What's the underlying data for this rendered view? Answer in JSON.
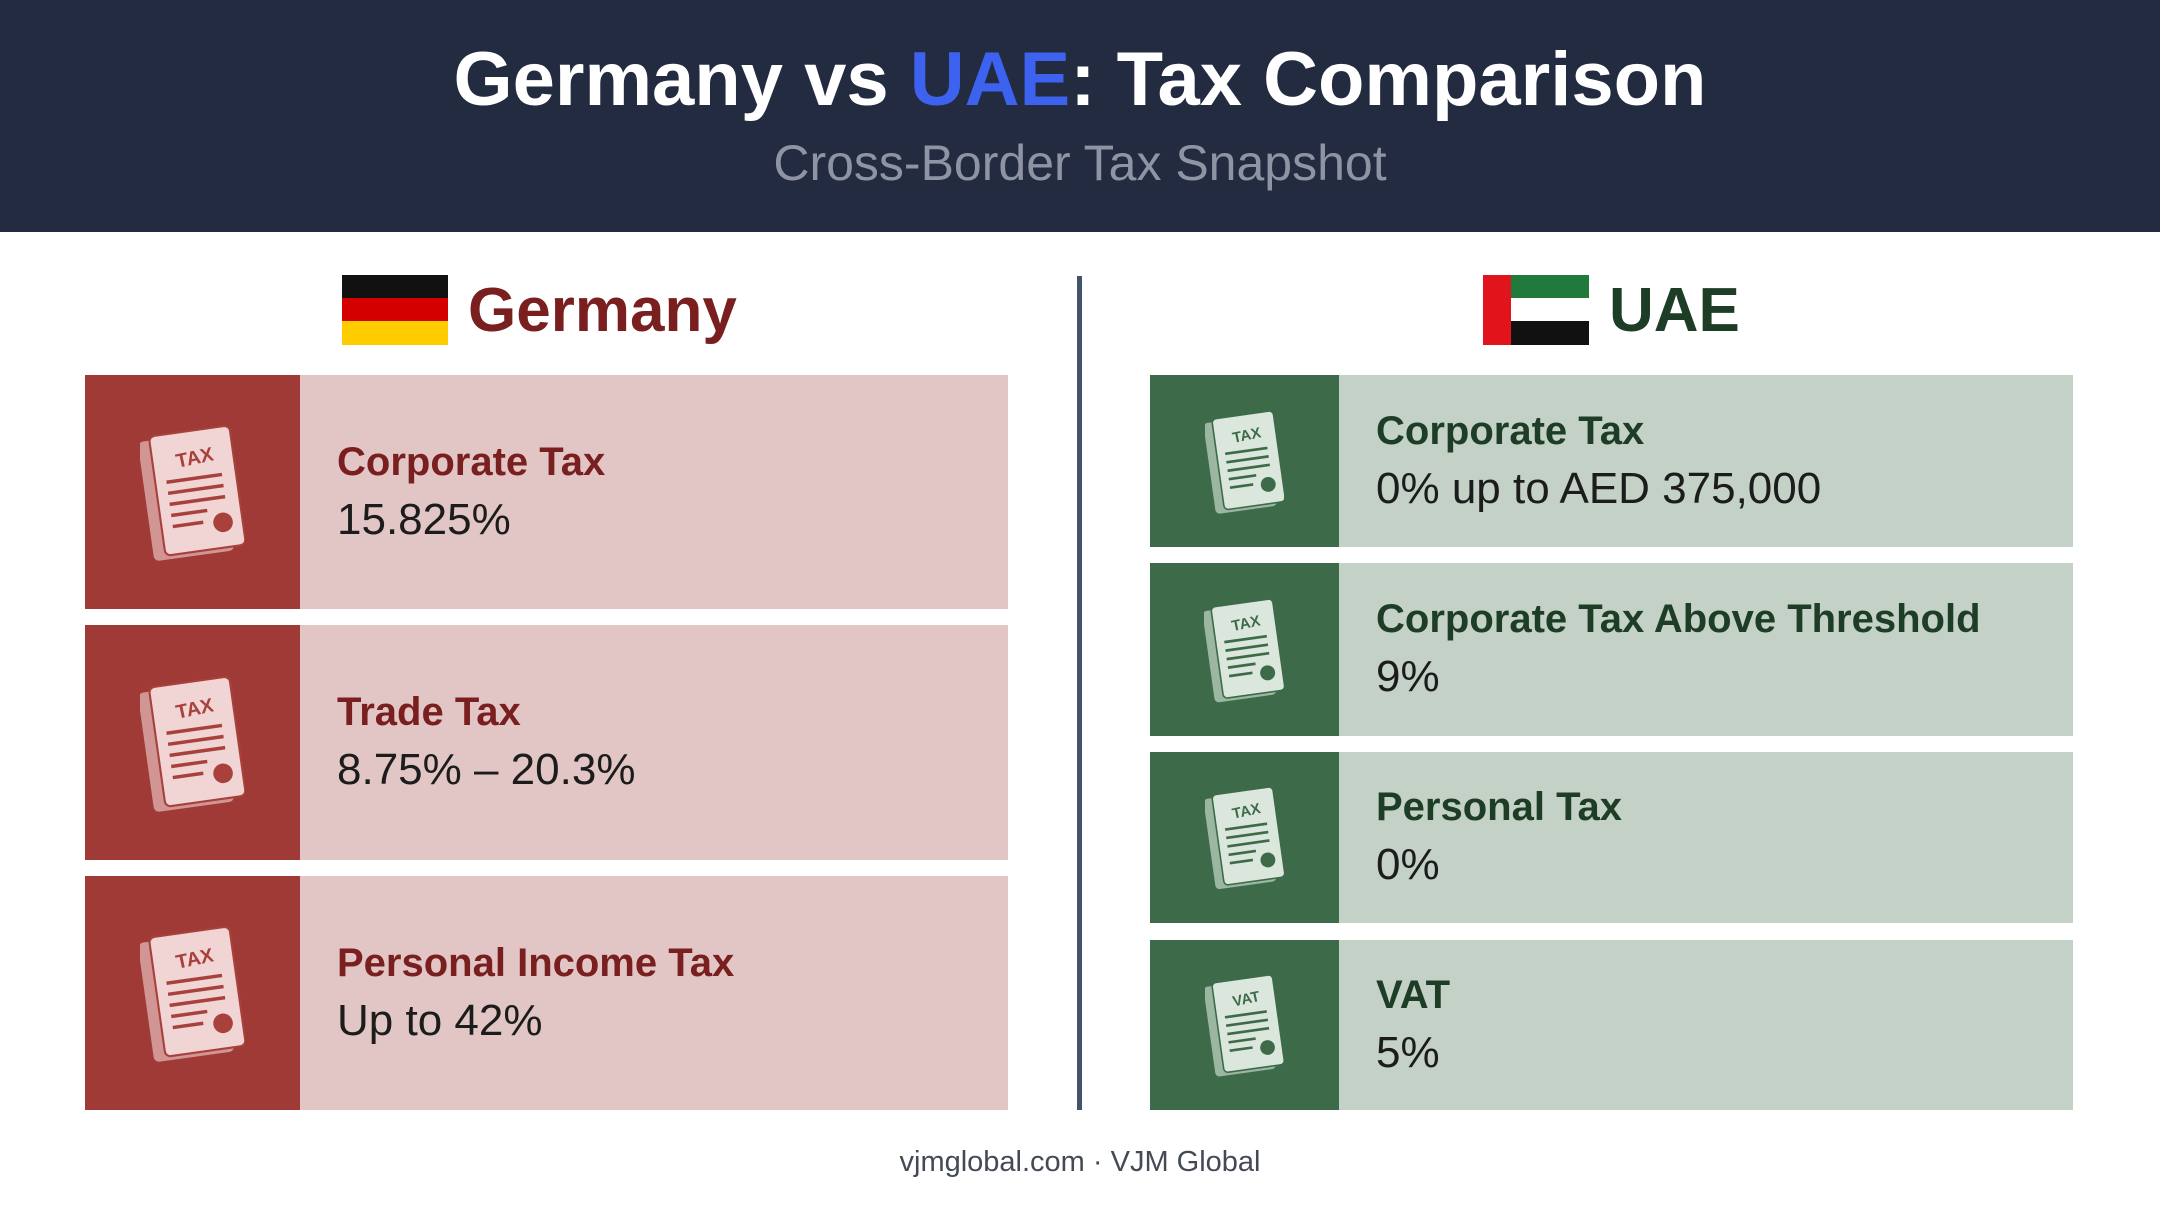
{
  "header": {
    "title": [
      "Germany vs ",
      "UAE",
      ": Tax Comparison"
    ],
    "subtitle": "Cross-Border Tax Snapshot"
  },
  "columns": [
    {
      "heading": "Germany",
      "cards": [
        {
          "icon": "TAX",
          "label": "Corporate Tax",
          "value": "15.825%"
        },
        {
          "icon": "TAX",
          "label": "Trade Tax",
          "value": "8.75% – 20.3%"
        },
        {
          "icon": "TAX",
          "label": "Personal Income Tax",
          "value": "Up to 42%"
        }
      ]
    },
    {
      "heading": "UAE",
      "cards": [
        {
          "icon": "TAX",
          "label": "Corporate Tax",
          "value": "0% up to AED 375,000"
        },
        {
          "icon": "TAX",
          "label": "Corporate Tax Above Threshold",
          "value": "9%"
        },
        {
          "icon": "TAX",
          "label": "Personal Tax",
          "value": "0%"
        },
        {
          "icon": "VAT",
          "label": "VAT",
          "value": "5%"
        }
      ]
    }
  ],
  "footer": "vjmglobal.com · VJM Global"
}
